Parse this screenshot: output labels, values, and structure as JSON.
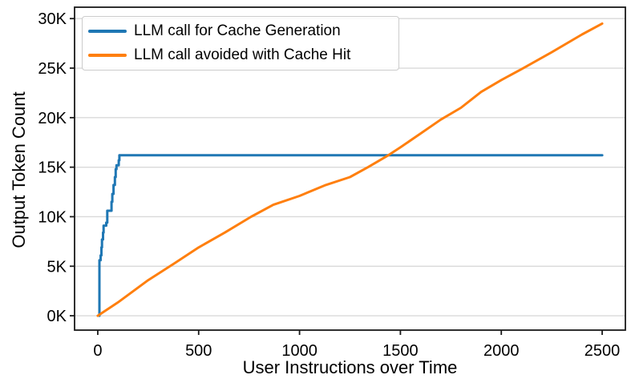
{
  "figure": {
    "xlabel": "User Instructions over Time",
    "ylabel": "Output Token Count"
  },
  "legend": {
    "items": [
      {
        "label": "LLM call for Cache Generation",
        "color": "#1f77b4"
      },
      {
        "label": "LLM call avoided with Cache Hit",
        "color": "#ff7f0e"
      }
    ]
  },
  "chart_data": {
    "type": "line",
    "title": "",
    "xlabel": "User Instructions over Time",
    "ylabel": "Output Token Count",
    "xlim": [
      -115,
      2615
    ],
    "ylim": [
      -1450,
      31150
    ],
    "grid": "horizontal-only",
    "legend_position": "upper-left",
    "xticks": {
      "values": [
        0,
        500,
        1000,
        1500,
        2000,
        2500
      ],
      "labels": [
        "0",
        "500",
        "1000",
        "1500",
        "2000",
        "2500"
      ]
    },
    "yticks": {
      "values": [
        0,
        5000,
        10000,
        15000,
        20000,
        25000,
        30000
      ],
      "labels": [
        "0K",
        "5K",
        "10K",
        "15K",
        "20K",
        "25K",
        "30K"
      ]
    },
    "series": [
      {
        "name": "LLM call for Cache Generation",
        "color": "#1f77b4",
        "points": [
          [
            8,
            0
          ],
          [
            8,
            5600
          ],
          [
            14,
            5600
          ],
          [
            14,
            6100
          ],
          [
            18,
            6100
          ],
          [
            18,
            6900
          ],
          [
            21,
            6900
          ],
          [
            21,
            7700
          ],
          [
            26,
            7700
          ],
          [
            26,
            8400
          ],
          [
            29,
            8400
          ],
          [
            29,
            9100
          ],
          [
            42,
            9100
          ],
          [
            42,
            9400
          ],
          [
            47,
            9400
          ],
          [
            47,
            10600
          ],
          [
            68,
            10600
          ],
          [
            68,
            11500
          ],
          [
            72,
            11500
          ],
          [
            72,
            12300
          ],
          [
            78,
            12300
          ],
          [
            78,
            13200
          ],
          [
            85,
            13200
          ],
          [
            85,
            14000
          ],
          [
            89,
            14000
          ],
          [
            89,
            14800
          ],
          [
            93,
            14800
          ],
          [
            93,
            15200
          ],
          [
            104,
            15200
          ],
          [
            104,
            15700
          ],
          [
            107,
            15700
          ],
          [
            107,
            16200
          ],
          [
            2500,
            16200
          ]
        ]
      },
      {
        "name": "LLM call avoided with Cache Hit",
        "color": "#ff7f0e",
        "points": [
          [
            0,
            0
          ],
          [
            100,
            1350
          ],
          [
            250,
            3600
          ],
          [
            380,
            5300
          ],
          [
            500,
            6900
          ],
          [
            630,
            8400
          ],
          [
            760,
            10000
          ],
          [
            870,
            11200
          ],
          [
            1000,
            12100
          ],
          [
            1130,
            13200
          ],
          [
            1250,
            14000
          ],
          [
            1340,
            15000
          ],
          [
            1440,
            16200
          ],
          [
            1500,
            17000
          ],
          [
            1600,
            18400
          ],
          [
            1700,
            19800
          ],
          [
            1800,
            21000
          ],
          [
            1900,
            22600
          ],
          [
            2000,
            23800
          ],
          [
            2100,
            24900
          ],
          [
            2250,
            26600
          ],
          [
            2400,
            28400
          ],
          [
            2500,
            29500
          ]
        ]
      }
    ]
  }
}
